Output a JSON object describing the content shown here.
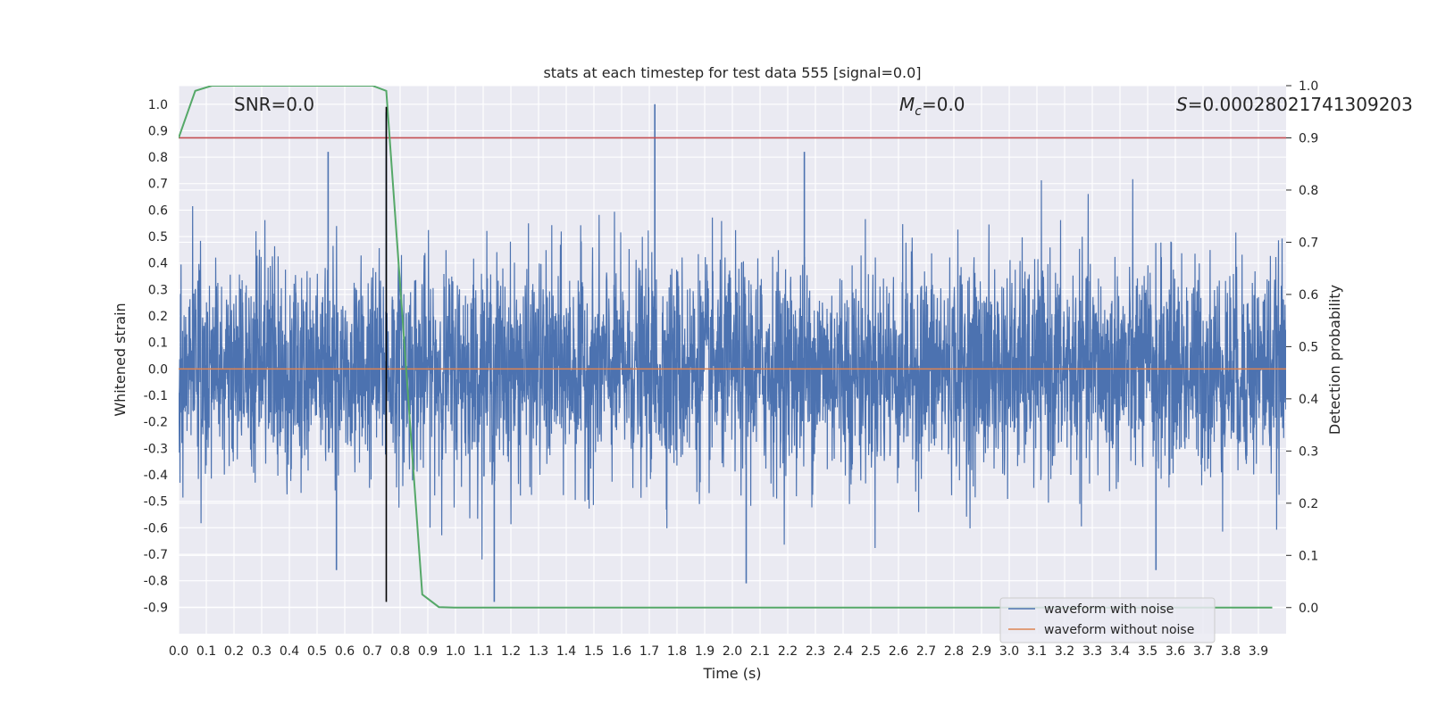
{
  "chart_data": {
    "type": "line",
    "title": "stats at each timestep for test data 555 [signal=0.0]",
    "xlabel": "Time (s)",
    "ylabel": "Whitened strain",
    "y2label": "Detection probability",
    "xlim": [
      0.0,
      4.0
    ],
    "ylim": [
      -1.0,
      1.07
    ],
    "y2lim": [
      -0.05,
      1.0
    ],
    "x_ticks": [
      "0.0",
      "0.1",
      "0.2",
      "0.3",
      "0.4",
      "0.5",
      "0.6",
      "0.7",
      "0.8",
      "0.9",
      "1.0",
      "1.1",
      "1.2",
      "1.3",
      "1.4",
      "1.5",
      "1.6",
      "1.7",
      "1.8",
      "1.9",
      "2.0",
      "2.1",
      "2.2",
      "2.3",
      "2.4",
      "2.5",
      "2.6",
      "2.7",
      "2.8",
      "2.9",
      "3.0",
      "3.1",
      "3.2",
      "3.3",
      "3.4",
      "3.5",
      "3.6",
      "3.7",
      "3.8",
      "3.9"
    ],
    "y_ticks": [
      "1.0",
      "0.9",
      "0.8",
      "0.7",
      "0.6",
      "0.5",
      "0.4",
      "0.3",
      "0.2",
      "0.1",
      "0.0",
      "-0.1",
      "-0.2",
      "-0.3",
      "-0.4",
      "-0.5",
      "-0.6",
      "-0.7",
      "-0.8",
      "-0.9"
    ],
    "y2_ticks": [
      "1.0",
      "0.9",
      "0.8",
      "0.7",
      "0.6",
      "0.5",
      "0.4",
      "0.3",
      "0.2",
      "0.1",
      "0.0"
    ],
    "grid": true,
    "legend_position": "lower-right",
    "annotations": {
      "snr": "SNR=0.0",
      "mc_symbol": "M",
      "mc_sub": "c",
      "mc_value": "=0.0",
      "s_symbol": "S",
      "s_value": "=0.00028021741309203"
    },
    "series": [
      {
        "name": "waveform with noise",
        "color": "#4c72b0",
        "axis": "left",
        "description_kind": "dense noise, peak ≈ 1.0 at x≈1.72, minimum ≈ -0.88 at x≈1.14"
      },
      {
        "name": "waveform without noise",
        "color": "#dd8452",
        "axis": "left",
        "constant": 0.0
      },
      {
        "name": "",
        "color": "#55a868",
        "axis": "right",
        "x": [
          0.0,
          0.06,
          0.12,
          0.7,
          0.75,
          0.88,
          0.94,
          1.0,
          3.95
        ],
        "y": [
          0.9,
          0.99,
          1.0,
          1.0,
          0.99,
          0.025,
          0.001,
          0.0,
          0.0
        ]
      },
      {
        "name": "",
        "color": "#c44e52",
        "axis": "right",
        "constant": 0.9
      }
    ],
    "marker_x": 0.75,
    "colors": {
      "background": "#eaeaf2",
      "grid": "#ffffff",
      "marker": "#000000"
    }
  }
}
